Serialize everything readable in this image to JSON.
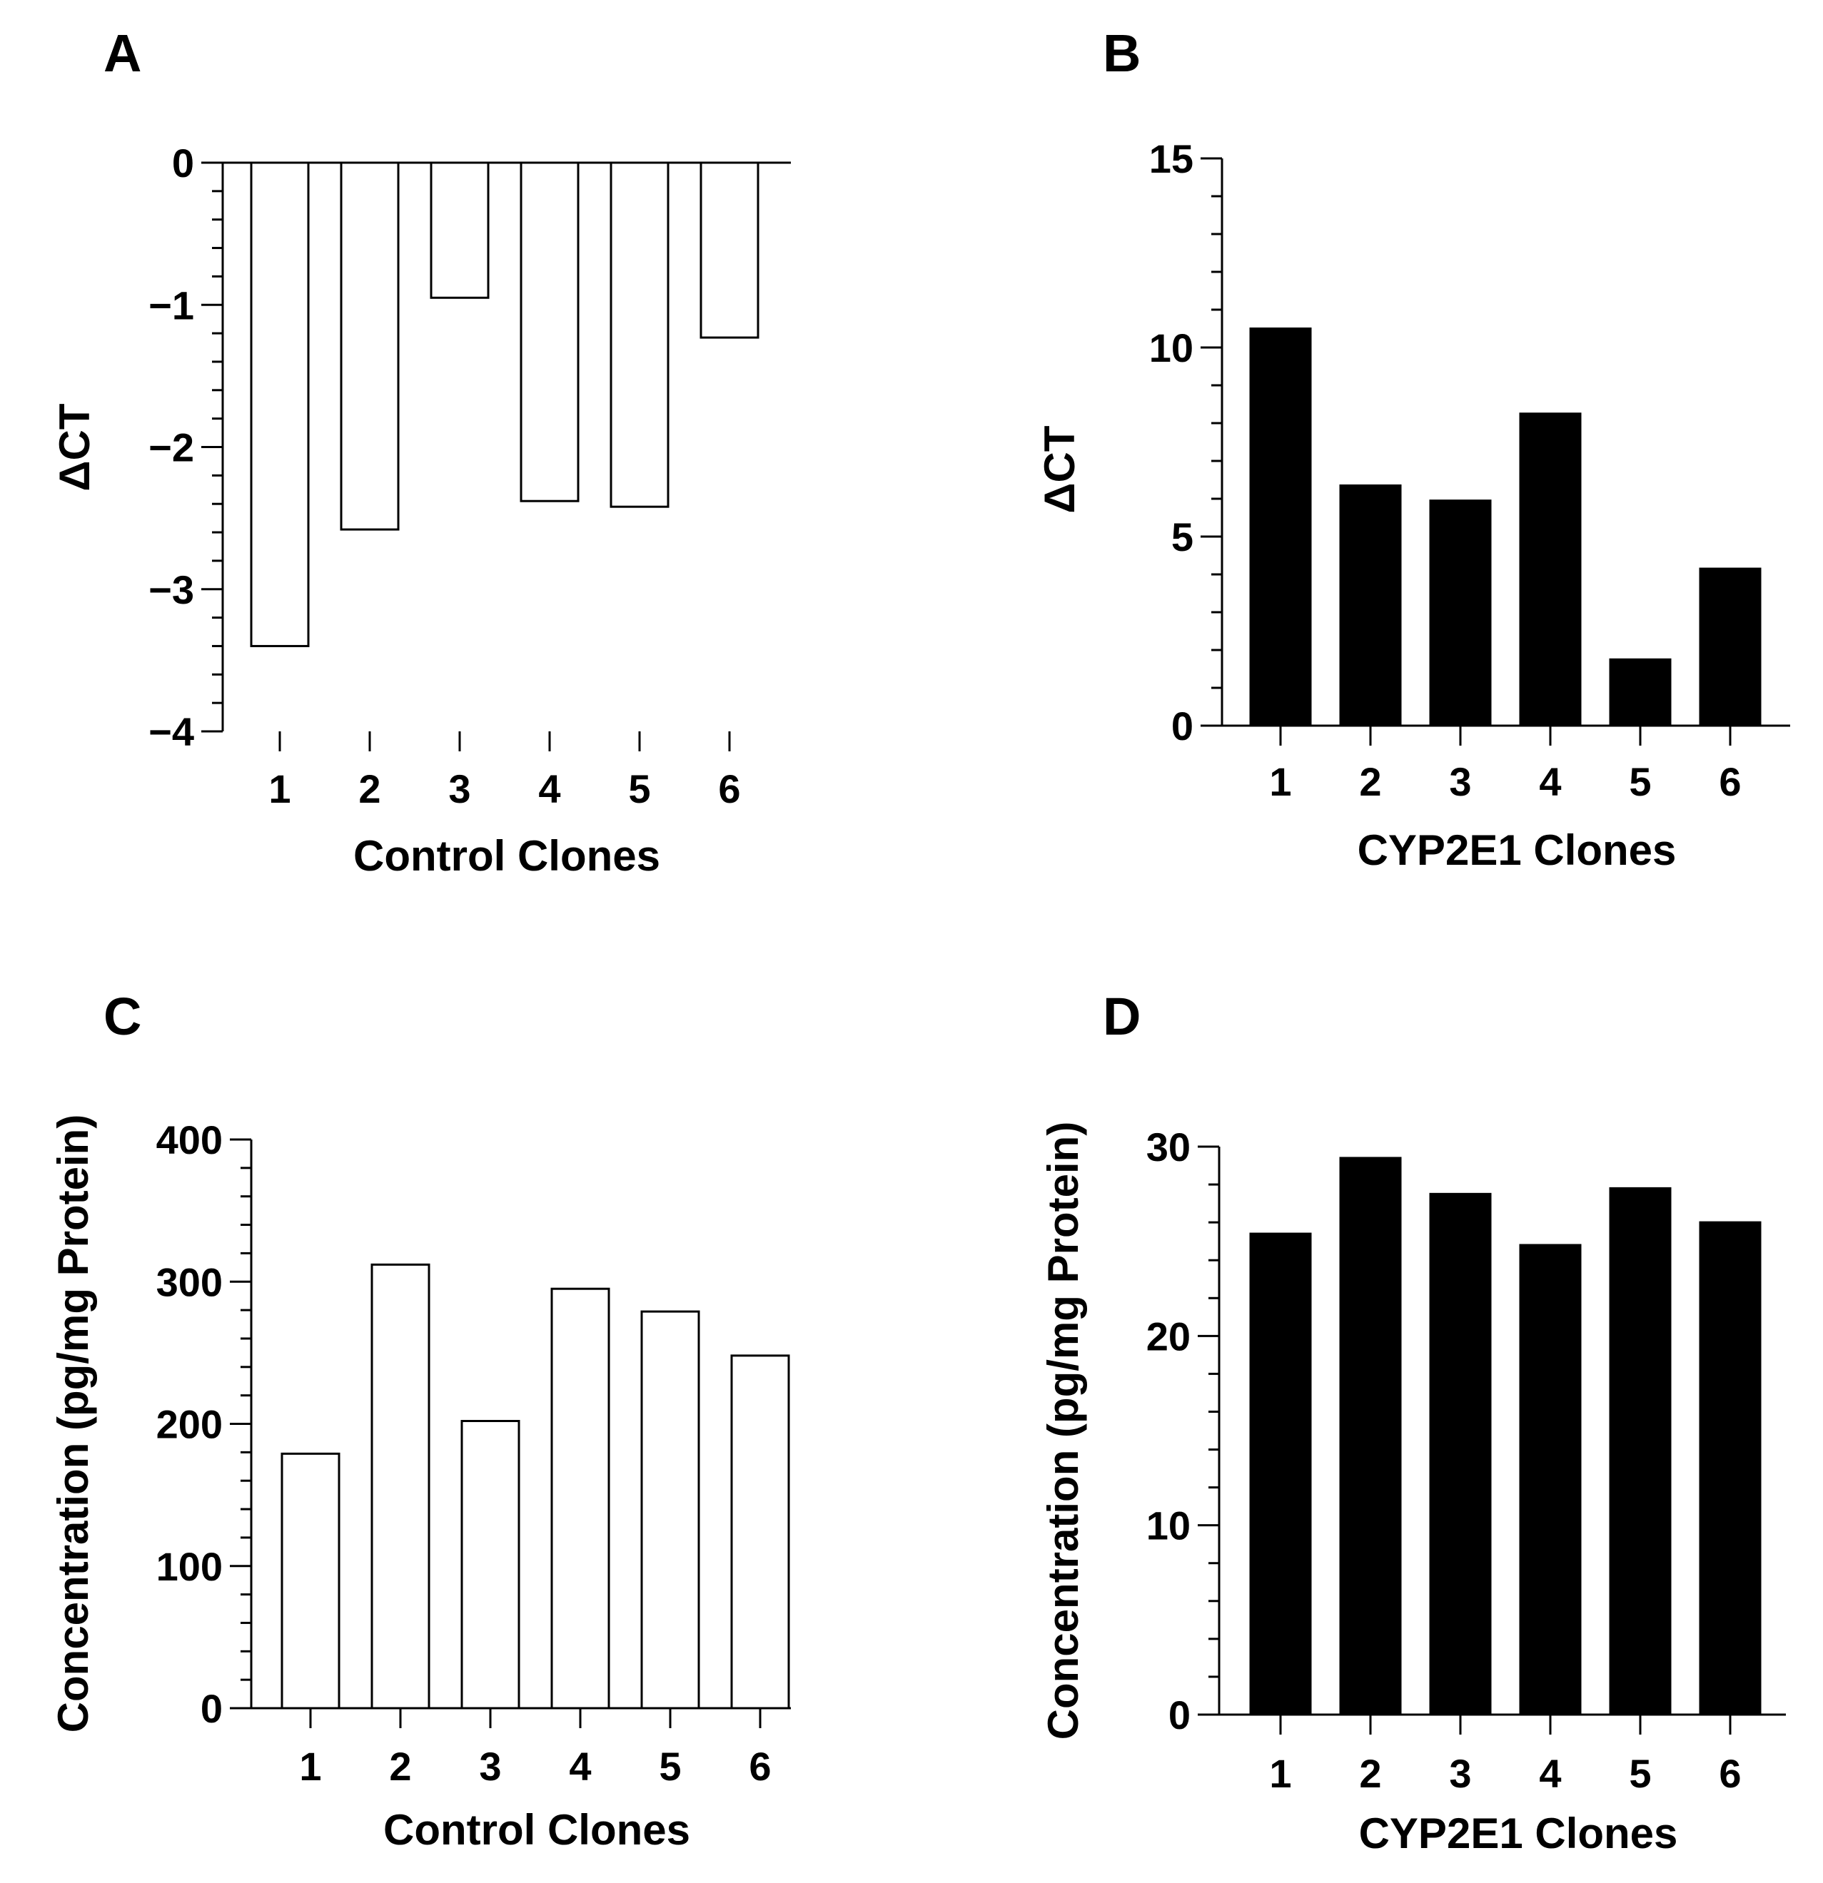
{
  "colors": {
    "axis": "#000000",
    "hollow_fill": "#ffffff",
    "solid_fill": "#000000"
  },
  "chart_data": [
    {
      "panel": "A",
      "type": "bar",
      "style": "hollow",
      "categories": [
        "1",
        "2",
        "3",
        "4",
        "5",
        "6"
      ],
      "values": [
        -3.4,
        -2.58,
        -0.95,
        -2.38,
        -2.42,
        -1.23
      ],
      "ylim": [
        -4,
        0
      ],
      "yticks": [
        0,
        -1,
        -2,
        -3,
        -4
      ],
      "ytick_labels": [
        "0",
        "−1",
        "−2",
        "−3",
        "−4"
      ],
      "minor_per_major": 5,
      "xlabel": "Control Clones",
      "ylabel": "ΔCT"
    },
    {
      "panel": "B",
      "type": "bar",
      "style": "filled",
      "categories": [
        "1",
        "2",
        "3",
        "4",
        "5",
        "6"
      ],
      "values": [
        10.5,
        6.35,
        5.95,
        8.25,
        1.75,
        4.15
      ],
      "ylim": [
        0,
        15
      ],
      "yticks": [
        0,
        5,
        10,
        15
      ],
      "ytick_labels": [
        "0",
        "5",
        "10",
        "15"
      ],
      "minor_per_major": 5,
      "xlabel": "CYP2E1 Clones",
      "ylabel": "ΔCT"
    },
    {
      "panel": "C",
      "type": "bar",
      "style": "hollow",
      "categories": [
        "1",
        "2",
        "3",
        "4",
        "5",
        "6"
      ],
      "values": [
        179,
        312,
        202,
        295,
        279,
        248
      ],
      "ylim": [
        0,
        400
      ],
      "yticks": [
        0,
        100,
        200,
        300,
        400
      ],
      "ytick_labels": [
        "0",
        "100",
        "200",
        "300",
        "400"
      ],
      "minor_per_major": 5,
      "xlabel": "Control Clones",
      "ylabel": "Concentration (pg/mg Protein)"
    },
    {
      "panel": "D",
      "type": "bar",
      "style": "filled",
      "categories": [
        "1",
        "2",
        "3",
        "4",
        "5",
        "6"
      ],
      "values": [
        25.4,
        29.4,
        27.5,
        24.8,
        27.8,
        26.0
      ],
      "ylim": [
        0,
        30
      ],
      "yticks": [
        0,
        10,
        20,
        30
      ],
      "ytick_labels": [
        "0",
        "10",
        "20",
        "30"
      ],
      "minor_per_major": 5,
      "xlabel": "CYP2E1 Clones",
      "ylabel": "Concentration (pg/mg Protein)"
    }
  ]
}
